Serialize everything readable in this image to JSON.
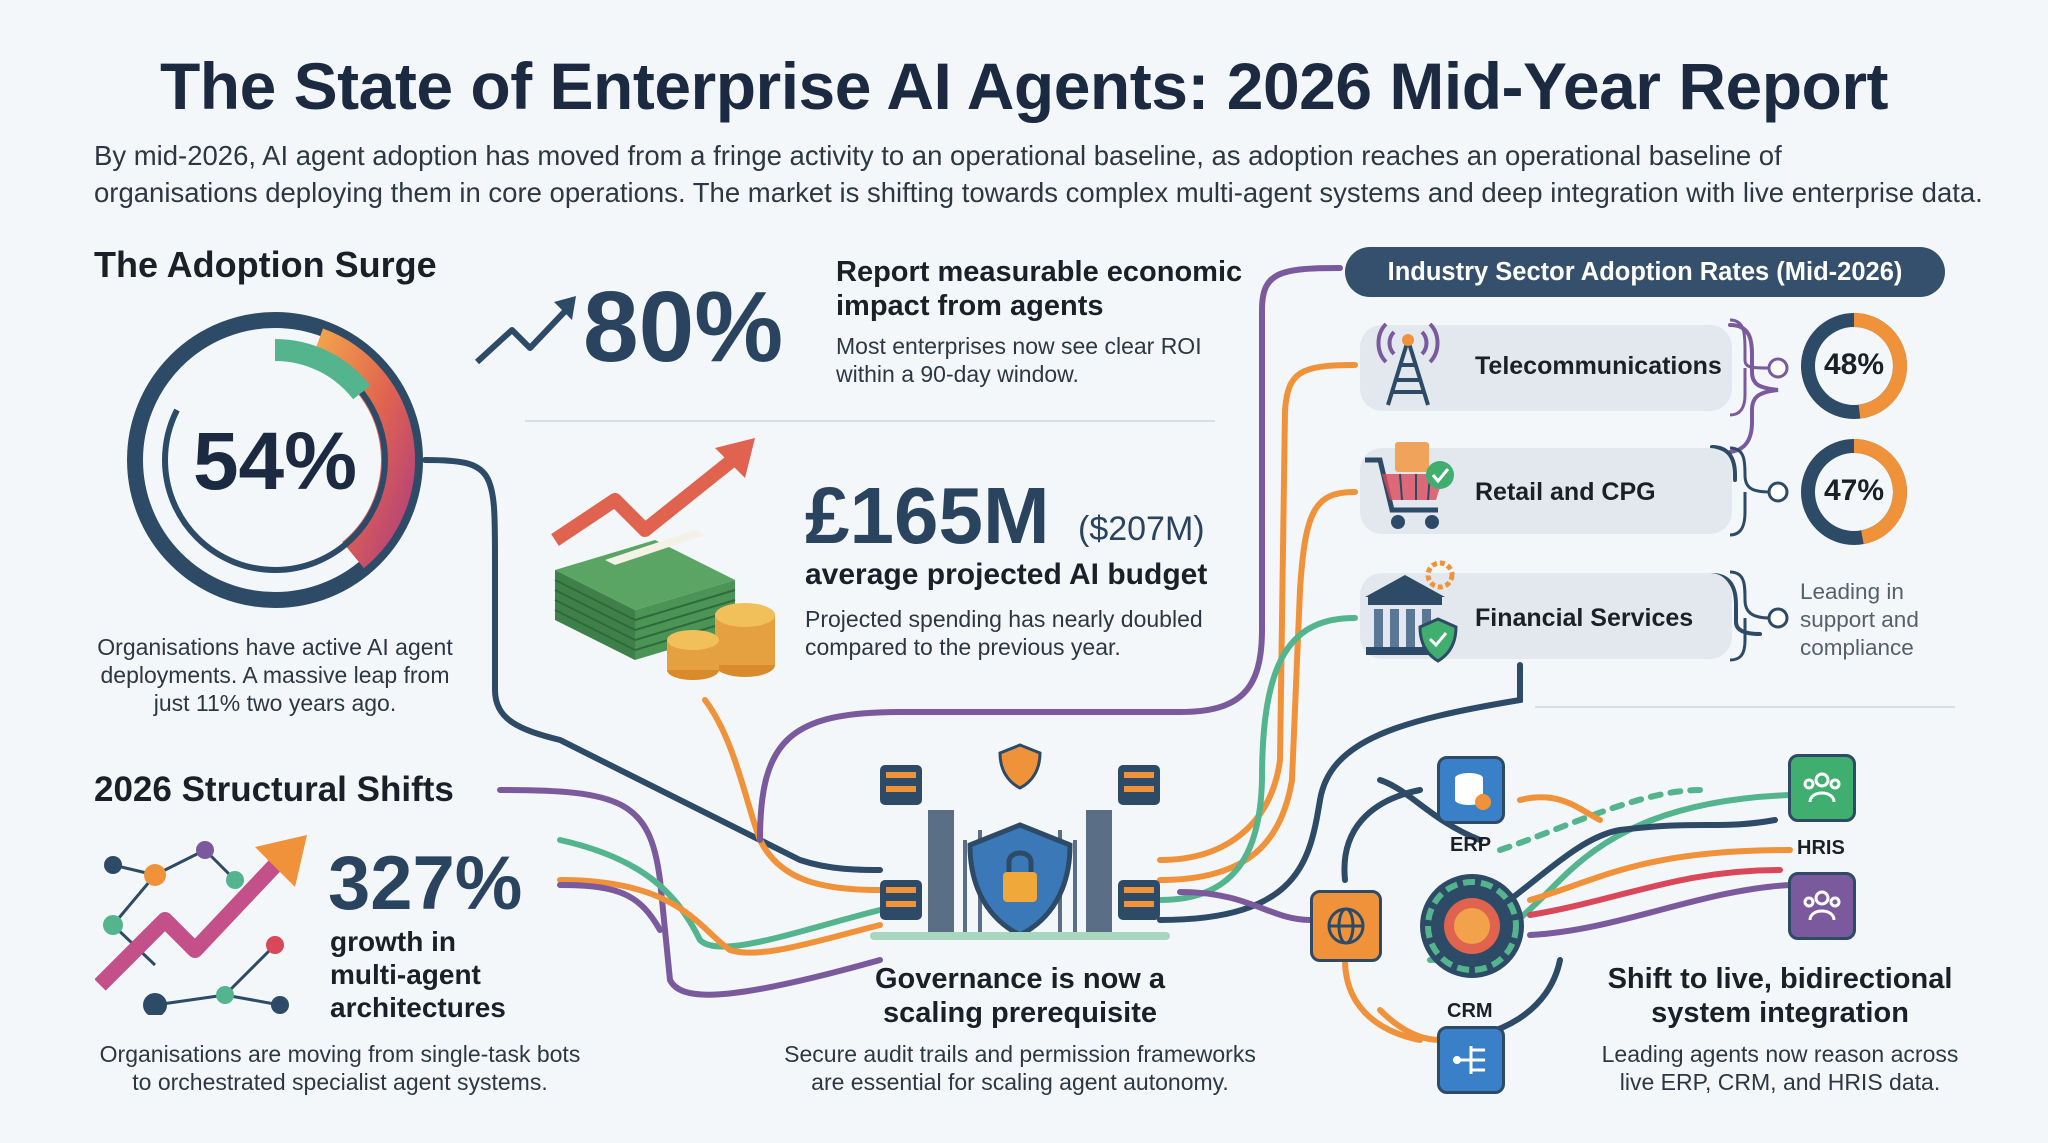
{
  "header": {
    "title": "The State of Enterprise AI Agents: 2026 Mid-Year Report",
    "intro_line1": "By mid-2026, AI agent adoption has moved from a fringe activity to an operational baseline, as adoption reaches an operational baseline of",
    "intro_line2": "organisations deploying them in core operations. The market is shifting towards complex multi-agent systems and deep integration with live enterprise data."
  },
  "adoption": {
    "heading": "The Adoption Surge",
    "value": "54%",
    "desc_line1": "Organisations have active AI agent",
    "desc_line2": "deployments. A massive leap from",
    "desc_line3": "just 11% two years ago."
  },
  "impact": {
    "value": "80%",
    "title_line1": "Report measurable economic",
    "title_line2": "impact from agents",
    "desc_line1": "Most enterprises now see clear ROI",
    "desc_line2": "within a 90-day window."
  },
  "budget": {
    "value": "£165M",
    "usd": "($207M)",
    "label": "average projected AI budget",
    "desc_line1": "Projected spending has nearly doubled",
    "desc_line2": "compared to the previous year."
  },
  "shifts": {
    "heading": "2026 Structural Shifts",
    "value": "327%",
    "label_line1": "growth in",
    "label_line2": "multi-agent",
    "label_line3": "architectures",
    "desc_line1": "Organisations are moving from single-task bots",
    "desc_line2": "to orchestrated specialist agent systems."
  },
  "governance": {
    "title_line1": "Governance is now a",
    "title_line2": "scaling prerequisite",
    "desc_line1": "Secure audit trails and permission frameworks",
    "desc_line2": "are essential for scaling agent autonomy."
  },
  "sectors": {
    "heading": "Industry Sector Adoption Rates (Mid-2026)",
    "items": [
      {
        "label": "Telecommunications",
        "value": "48%",
        "pct": 48
      },
      {
        "label": "Retail and CPG",
        "value": "47%",
        "pct": 47
      },
      {
        "label": "Financial Services",
        "note_line1": "Leading in",
        "note_line2": "support and",
        "note_line3": "compliance"
      }
    ]
  },
  "integration": {
    "erp": "ERP",
    "crm": "CRM",
    "hris": "HRIS",
    "title_line1": "Shift to live, bidirectional",
    "title_line2": "system integration",
    "desc_line1": "Leading agents now reason across",
    "desc_line2": "live ERP, CRM, and HRIS data."
  },
  "colors": {
    "navy": "#2d4a66",
    "orange": "#f0923a",
    "teal": "#54b48e",
    "purple": "#7a5a9c",
    "red": "#d9485a"
  }
}
